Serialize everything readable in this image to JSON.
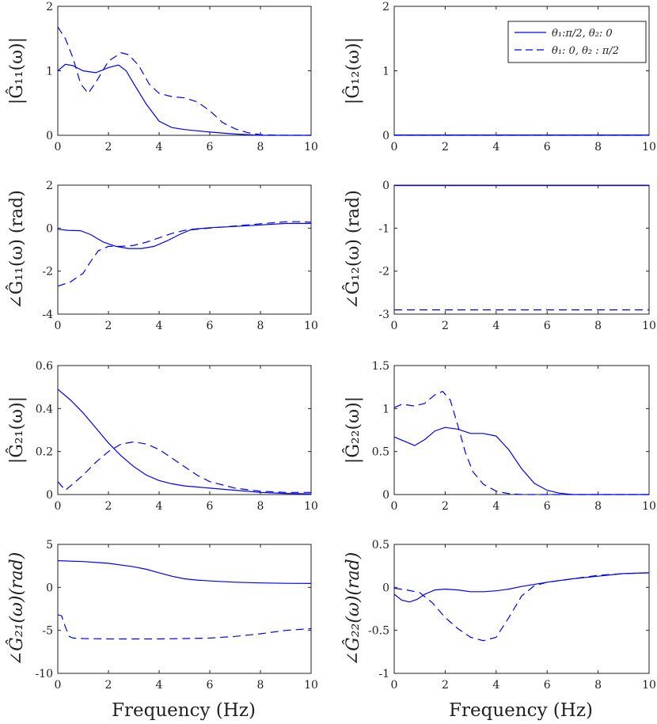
{
  "figure": {
    "xlabel": "Frequency (Hz)",
    "line_color": "#0000ff",
    "legend": {
      "entries": [
        {
          "label": "θ₁:π/2, θ₂: 0",
          "style": "solid"
        },
        {
          "label": "θ₁: 0, θ₂ : π/2",
          "style": "dashed"
        }
      ]
    }
  },
  "chart_data": [
    {
      "type": "line",
      "id": "g11-mag",
      "ylabel": "|Ĝ₁₁(ω)|",
      "xlim": [
        0,
        10
      ],
      "ylim": [
        0,
        2
      ],
      "xticks": [
        0,
        2,
        4,
        6,
        8,
        10
      ],
      "yticks": [
        0,
        1,
        2
      ],
      "ytick_labels": [
        "0",
        "1",
        "2"
      ],
      "series": [
        {
          "name": "θ1:π/2, θ2: 0",
          "style": "solid",
          "x": [
            0,
            0.3,
            0.6,
            1.0,
            1.5,
            2.0,
            2.4,
            2.7,
            3.0,
            3.5,
            4.0,
            4.5,
            5.0,
            5.5,
            6.0,
            7.0,
            8.0,
            9.0,
            10.0
          ],
          "y": [
            1.0,
            1.1,
            1.08,
            1.0,
            0.97,
            1.05,
            1.09,
            1.0,
            0.8,
            0.48,
            0.22,
            0.12,
            0.09,
            0.07,
            0.05,
            0.02,
            0.0,
            0.0,
            0.0
          ]
        },
        {
          "name": "θ1: 0, θ2 : π/2",
          "style": "dashed",
          "x": [
            0,
            0.3,
            0.6,
            0.9,
            1.2,
            1.5,
            2.0,
            2.5,
            2.8,
            3.2,
            3.6,
            4.0,
            4.5,
            5.0,
            5.5,
            6.0,
            6.5,
            7.0,
            7.5,
            8.0,
            9.0,
            10.0
          ],
          "y": [
            1.68,
            1.5,
            1.2,
            0.8,
            0.65,
            0.82,
            1.15,
            1.28,
            1.25,
            1.08,
            0.8,
            0.65,
            0.6,
            0.58,
            0.52,
            0.38,
            0.2,
            0.1,
            0.04,
            0.01,
            0.0,
            0.0
          ]
        }
      ]
    },
    {
      "type": "line",
      "id": "g12-mag",
      "ylabel": "|Ĝ₁₂(ω)|",
      "xlim": [
        0,
        10
      ],
      "ylim": [
        0,
        2
      ],
      "xticks": [
        0,
        2,
        4,
        6,
        8,
        10
      ],
      "yticks": [
        0,
        1,
        2
      ],
      "ytick_labels": [
        "0",
        "1",
        "2"
      ],
      "series": [
        {
          "name": "θ1:π/2, θ2: 0",
          "style": "solid",
          "x": [
            0,
            10
          ],
          "y": [
            0.005,
            0.005
          ]
        },
        {
          "name": "θ1: 0, θ2 : π/2",
          "style": "dashed",
          "x": [
            0,
            10
          ],
          "y": [
            0.0,
            0.0
          ]
        }
      ]
    },
    {
      "type": "line",
      "id": "g11-phase",
      "ylabel": "∠Ĝ₁₁(ω) (rad)",
      "xlim": [
        0,
        10
      ],
      "ylim": [
        -4,
        2
      ],
      "xticks": [
        0,
        2,
        4,
        6,
        8,
        10
      ],
      "yticks": [
        -4,
        -2,
        0,
        2
      ],
      "ytick_labels": [
        "-4",
        "-2",
        "0",
        "2"
      ],
      "series": [
        {
          "name": "θ1:π/2, θ2: 0",
          "style": "solid",
          "x": [
            0,
            0.4,
            0.9,
            1.3,
            1.8,
            2.3,
            2.8,
            3.3,
            3.8,
            4.3,
            4.8,
            5.3,
            6.0,
            7.0,
            8.0,
            9.0,
            10.0
          ],
          "y": [
            -0.05,
            -0.1,
            -0.12,
            -0.3,
            -0.65,
            -0.85,
            -0.95,
            -0.95,
            -0.85,
            -0.6,
            -0.3,
            -0.05,
            0.02,
            0.08,
            0.15,
            0.22,
            0.22
          ]
        },
        {
          "name": "θ1: 0, θ2 : π/2",
          "style": "dashed",
          "x": [
            0,
            0.5,
            1.0,
            1.3,
            1.6,
            2.0,
            2.5,
            3.0,
            3.5,
            4.0,
            4.5,
            5.0,
            6.0,
            7.0,
            8.0,
            9.0,
            9.5,
            10.0
          ],
          "y": [
            -2.7,
            -2.5,
            -2.1,
            -1.55,
            -1.05,
            -0.85,
            -0.85,
            -0.8,
            -0.65,
            -0.45,
            -0.25,
            -0.1,
            0.0,
            0.1,
            0.2,
            0.3,
            0.3,
            0.28
          ]
        }
      ]
    },
    {
      "type": "line",
      "id": "g12-phase",
      "ylabel": "∠Ĝ₁₂(ω) (rad)",
      "xlim": [
        0,
        10
      ],
      "ylim": [
        -3,
        0
      ],
      "xticks": [
        0,
        2,
        4,
        6,
        8,
        10
      ],
      "yticks": [
        -3,
        -2,
        -1,
        0
      ],
      "ytick_labels": [
        "-3",
        "-2",
        "-1",
        "0"
      ],
      "series": [
        {
          "name": "θ1:π/2, θ2: 0",
          "style": "solid",
          "x": [
            0,
            10
          ],
          "y": [
            -0.01,
            -0.01
          ]
        },
        {
          "name": "θ1: 0, θ2 : π/2",
          "style": "dashed",
          "x": [
            0,
            10
          ],
          "y": [
            -2.9,
            -2.9
          ]
        }
      ]
    },
    {
      "type": "line",
      "id": "g21-mag",
      "ylabel": "|Ĝ₂₁(ω)|",
      "xlim": [
        0,
        10
      ],
      "ylim": [
        0,
        0.6
      ],
      "xticks": [
        0,
        2,
        4,
        6,
        8,
        10
      ],
      "yticks": [
        0,
        0.2,
        0.4,
        0.6
      ],
      "ytick_labels": [
        "0",
        "0.2",
        "0.4",
        "0.6"
      ],
      "series": [
        {
          "name": "θ1:π/2, θ2: 0",
          "style": "solid",
          "x": [
            0,
            0.5,
            1.0,
            1.5,
            2.0,
            2.5,
            3.0,
            3.5,
            4.0,
            4.5,
            5.0,
            6.0,
            7.0,
            8.0,
            9.0,
            10.0
          ],
          "y": [
            0.49,
            0.44,
            0.38,
            0.31,
            0.24,
            0.18,
            0.13,
            0.09,
            0.065,
            0.05,
            0.04,
            0.03,
            0.02,
            0.01,
            0.005,
            0.003
          ]
        },
        {
          "name": "θ1: 0, θ2 : π/2",
          "style": "dashed",
          "x": [
            0,
            0.3,
            0.6,
            1.0,
            1.5,
            2.0,
            2.5,
            3.0,
            3.5,
            4.0,
            4.5,
            5.0,
            5.5,
            6.0,
            7.0,
            8.0,
            9.0,
            10.0
          ],
          "y": [
            0.06,
            0.02,
            0.05,
            0.09,
            0.15,
            0.2,
            0.235,
            0.245,
            0.235,
            0.21,
            0.17,
            0.13,
            0.09,
            0.06,
            0.03,
            0.015,
            0.01,
            0.01
          ]
        }
      ]
    },
    {
      "type": "line",
      "id": "g22-mag",
      "ylabel": "|Ĝ₂₂(ω)|",
      "xlim": [
        0,
        10
      ],
      "ylim": [
        0,
        1.5
      ],
      "xticks": [
        0,
        2,
        4,
        6,
        8,
        10
      ],
      "yticks": [
        0,
        0.5,
        1,
        1.5
      ],
      "ytick_labels": [
        "0",
        "0.5",
        "1",
        "1.5"
      ],
      "series": [
        {
          "name": "θ1:π/2, θ2: 0",
          "style": "solid",
          "x": [
            0,
            0.4,
            0.8,
            1.2,
            1.6,
            2.0,
            2.5,
            3.0,
            3.5,
            4.0,
            4.5,
            5.0,
            5.5,
            6.0,
            6.5,
            7.0,
            8.0,
            10.0
          ],
          "y": [
            0.67,
            0.62,
            0.57,
            0.64,
            0.74,
            0.78,
            0.76,
            0.71,
            0.71,
            0.68,
            0.52,
            0.3,
            0.13,
            0.05,
            0.015,
            0.0,
            0.0,
            0.0
          ]
        },
        {
          "name": "θ1: 0, θ2 : π/2",
          "style": "dashed",
          "x": [
            0,
            0.3,
            0.8,
            1.2,
            1.6,
            1.9,
            2.2,
            2.5,
            2.8,
            3.1,
            3.5,
            4.0,
            4.5,
            5.0,
            6.0,
            8.0,
            10.0
          ],
          "y": [
            1.01,
            1.05,
            1.03,
            1.06,
            1.16,
            1.2,
            1.1,
            0.8,
            0.48,
            0.26,
            0.12,
            0.04,
            0.01,
            0.0,
            0.0,
            0.0,
            0.0
          ]
        }
      ]
    },
    {
      "type": "line",
      "id": "g21-phase",
      "ylabel": "∠Ĝ₂₁(ω)(rad)",
      "ylabel_italic": true,
      "xlim": [
        0,
        10
      ],
      "ylim": [
        -10,
        5
      ],
      "xticks": [
        0,
        2,
        4,
        6,
        8,
        10
      ],
      "yticks": [
        -10,
        -5,
        0,
        5
      ],
      "ytick_labels": [
        "-10",
        "-5",
        "0",
        "5"
      ],
      "series": [
        {
          "name": "θ1:π/2, θ2: 0",
          "style": "solid",
          "x": [
            0,
            1,
            2,
            3,
            3.5,
            4,
            4.5,
            5,
            5.5,
            6,
            7,
            8,
            9,
            10
          ],
          "y": [
            3.1,
            3.0,
            2.8,
            2.4,
            2.1,
            1.7,
            1.3,
            1.0,
            0.85,
            0.75,
            0.6,
            0.52,
            0.47,
            0.45
          ]
        },
        {
          "name": "θ1: 0, θ2 : π/2",
          "style": "dashed",
          "x": [
            0,
            0.15,
            0.3,
            0.45,
            0.6,
            1.0,
            2.0,
            3.0,
            4.0,
            5.0,
            6.0,
            7.0,
            8.0,
            9.0,
            10.0
          ],
          "y": [
            -3.2,
            -3.3,
            -4.6,
            -5.7,
            -5.9,
            -5.95,
            -6.0,
            -6.0,
            -6.0,
            -5.95,
            -5.9,
            -5.7,
            -5.4,
            -5.0,
            -4.8
          ]
        }
      ]
    },
    {
      "type": "line",
      "id": "g22-phase",
      "ylabel": "∠Ĝ₂₂(ω)(rad)",
      "ylabel_italic": true,
      "xlim": [
        0,
        10
      ],
      "ylim": [
        -1,
        0.5
      ],
      "xticks": [
        0,
        2,
        4,
        6,
        8,
        10
      ],
      "yticks": [
        -1,
        -0.5,
        0,
        0.5
      ],
      "ytick_labels": [
        "-1",
        "-0.5",
        "0",
        "0.5"
      ],
      "series": [
        {
          "name": "θ1:π/2, θ2: 0",
          "style": "solid",
          "x": [
            0,
            0.3,
            0.6,
            0.9,
            1.2,
            1.6,
            2.0,
            2.5,
            3.0,
            3.5,
            4.0,
            4.5,
            5.0,
            6.0,
            7.0,
            8.0,
            9.0,
            10.0
          ],
          "y": [
            -0.08,
            -0.15,
            -0.17,
            -0.14,
            -0.08,
            -0.03,
            -0.02,
            -0.03,
            -0.05,
            -0.05,
            -0.04,
            -0.02,
            0.01,
            0.06,
            0.1,
            0.13,
            0.16,
            0.17
          ]
        },
        {
          "name": "θ1: 0, θ2 : π/2",
          "style": "dashed",
          "x": [
            0,
            0.5,
            1.0,
            1.5,
            2.0,
            2.5,
            3.0,
            3.5,
            4.0,
            4.5,
            5.0,
            5.5,
            6.0,
            7.0,
            8.0,
            9.0,
            10.0
          ],
          "y": [
            -0.01,
            -0.03,
            -0.06,
            -0.18,
            -0.35,
            -0.48,
            -0.58,
            -0.62,
            -0.58,
            -0.35,
            -0.1,
            0.02,
            0.06,
            0.1,
            0.14,
            0.16,
            0.17
          ]
        }
      ]
    }
  ]
}
